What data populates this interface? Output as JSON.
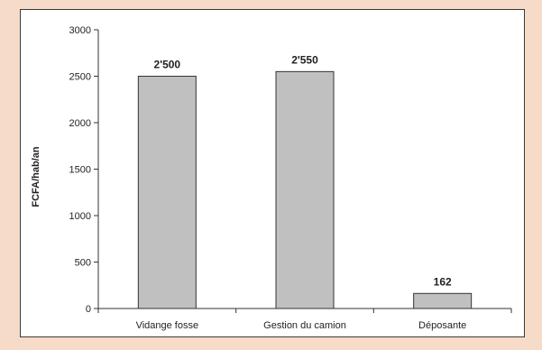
{
  "chart_data": {
    "type": "bar",
    "categories": [
      "Vidange fosse",
      "Gestion du camion",
      "Déposante"
    ],
    "values": [
      2500,
      2550,
      162
    ],
    "data_labels": [
      "2'500",
      "2'550",
      "162"
    ],
    "ylabel": "FCFA/hab/an",
    "xlabel": "",
    "ylim": [
      0,
      3000
    ],
    "yticks": [
      0,
      500,
      1000,
      1500,
      2000,
      2500,
      3000
    ],
    "grid": false,
    "bar_color": "#c0c0c0",
    "bar_edge_color": "#333333"
  }
}
